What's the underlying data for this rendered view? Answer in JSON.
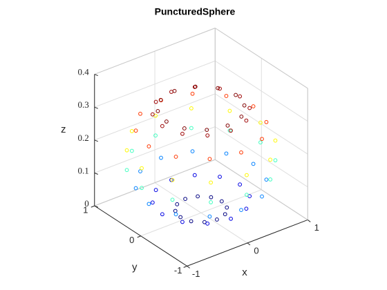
{
  "chart_data": {
    "type": "scatter3",
    "title": "PuncturedSphere",
    "xlabel": "x",
    "ylabel": "y",
    "zlabel": "z",
    "xlim": [
      -1,
      1
    ],
    "ylim": [
      -1,
      1
    ],
    "zlim": [
      0,
      0.4
    ],
    "xticks": [
      -1,
      0,
      1
    ],
    "yticks": [
      -1,
      0,
      1
    ],
    "zticks": [
      0,
      0.1,
      0.2,
      0.3,
      0.4
    ],
    "grid": true,
    "colormap": "jet",
    "view": [
      -37.5,
      30
    ],
    "x": [
      0.342,
      0.296,
      0.171,
      0,
      -0.171,
      -0.296,
      -0.342,
      -0.296,
      -0.171,
      0,
      0.171,
      0.296,
      0.643,
      0.557,
      0.322,
      0,
      -0.322,
      -0.557,
      -0.643,
      -0.557,
      -0.322,
      0,
      0.322,
      0.557,
      0.866,
      0.75,
      0.433,
      0,
      -0.433,
      -0.75,
      -0.866,
      -0.75,
      -0.433,
      0,
      0.433,
      0.75,
      0.985,
      0.853,
      0.493,
      0,
      -0.493,
      -0.853,
      -0.985,
      -0.853,
      -0.493,
      0,
      0.493,
      0.853,
      0.985,
      0.853,
      0.493,
      0,
      -0.493,
      -0.853,
      -0.985,
      -0.853,
      -0.493,
      0,
      0.493,
      0.853,
      0.866,
      0.75,
      0.433,
      0,
      -0.433,
      -0.75,
      -0.866,
      -0.75,
      -0.433,
      0,
      0.433,
      0.75,
      0.643,
      0.557,
      0.322,
      0,
      -0.322,
      -0.557,
      -0.643,
      -0.557,
      -0.322,
      0,
      0.322,
      0.557,
      0.574,
      0.497,
      0.287,
      0,
      -0.287,
      -0.497,
      -0.574,
      -0.497,
      -0.287,
      0,
      0.287,
      0.497
    ],
    "y": [
      0,
      0.171,
      0.296,
      0.342,
      0.296,
      0.171,
      0,
      -0.171,
      -0.296,
      -0.342,
      -0.296,
      -0.171,
      0,
      0.322,
      0.557,
      0.643,
      0.557,
      0.322,
      0,
      -0.322,
      -0.557,
      -0.643,
      -0.557,
      -0.322,
      0,
      0.433,
      0.75,
      0.866,
      0.75,
      0.433,
      0,
      -0.433,
      -0.75,
      -0.866,
      -0.75,
      -0.433,
      0,
      0.493,
      0.853,
      0.985,
      0.853,
      0.493,
      0,
      -0.493,
      -0.853,
      -0.985,
      -0.853,
      -0.493,
      0,
      0.493,
      0.853,
      0.985,
      0.853,
      0.493,
      0,
      -0.493,
      -0.853,
      -0.985,
      -0.853,
      -0.493,
      0,
      0.433,
      0.75,
      0.866,
      0.75,
      0.433,
      0,
      -0.433,
      -0.75,
      -0.866,
      -0.75,
      -0.433,
      0,
      0.322,
      0.557,
      0.643,
      0.557,
      0.322,
      0,
      -0.322,
      -0.557,
      -0.643,
      -0.557,
      -0.322,
      0,
      0.287,
      0.497,
      0.574,
      0.497,
      0.287,
      0,
      -0.287,
      -0.497,
      -0.574,
      -0.497,
      -0.287
    ],
    "z": [
      0.011,
      0.011,
      0.011,
      0.011,
      0.011,
      0.011,
      0.011,
      0.011,
      0.011,
      0.011,
      0.011,
      0.011,
      0.041,
      0.041,
      0.041,
      0.041,
      0.041,
      0.041,
      0.041,
      0.041,
      0.041,
      0.041,
      0.041,
      0.041,
      0.088,
      0.088,
      0.088,
      0.088,
      0.088,
      0.088,
      0.088,
      0.088,
      0.088,
      0.088,
      0.088,
      0.088,
      0.145,
      0.145,
      0.145,
      0.145,
      0.145,
      0.145,
      0.145,
      0.145,
      0.145,
      0.145,
      0.145,
      0.145,
      0.205,
      0.205,
      0.205,
      0.205,
      0.205,
      0.205,
      0.205,
      0.205,
      0.205,
      0.205,
      0.205,
      0.205,
      0.263,
      0.263,
      0.263,
      0.263,
      0.263,
      0.263,
      0.263,
      0.263,
      0.263,
      0.263,
      0.263,
      0.263,
      0.309,
      0.309,
      0.309,
      0.309,
      0.309,
      0.309,
      0.309,
      0.309,
      0.309,
      0.309,
      0.309,
      0.309,
      0.318,
      0.318,
      0.318,
      0.318,
      0.318,
      0.318,
      0.318,
      0.318,
      0.318,
      0.318,
      0.318,
      0.318
    ]
  }
}
